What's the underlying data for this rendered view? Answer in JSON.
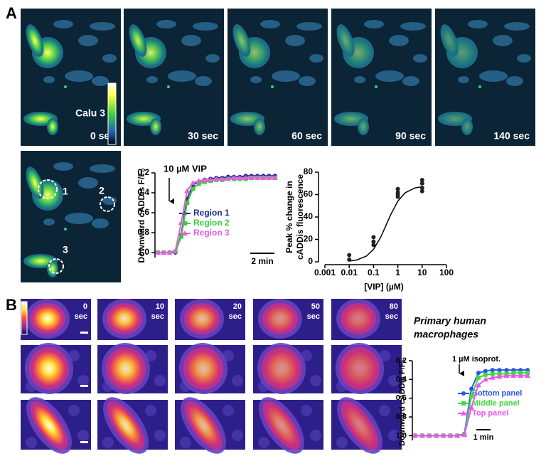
{
  "panel_labels": [
    "A",
    "B"
  ],
  "panel_a": {
    "cell_line": "Calu 3",
    "timepoints": [
      "0 sec",
      "30 sec",
      "60 sec",
      "90 sec",
      "140 sec"
    ],
    "regions": [
      "1",
      "2",
      "3"
    ]
  },
  "panel_b": {
    "title": [
      "Primary human",
      "macrophages"
    ],
    "timepoints": [
      {
        "time": "0",
        "unit": "sec"
      },
      {
        "time": "10",
        "unit": "sec"
      },
      {
        "time": "20",
        "unit": "sec"
      },
      {
        "time": "50",
        "unit": "sec"
      },
      {
        "time": "80",
        "unit": "sec"
      }
    ]
  },
  "chart_data": [
    {
      "type": "line",
      "y_label": "Downward cADDis F/Fₒ",
      "annotation": "10 µM VIP",
      "scale_bar": "2 min",
      "x": [
        0,
        0.5,
        1,
        1.5,
        2,
        2.5,
        3,
        3.5,
        4,
        4.5,
        5,
        5.5,
        6,
        6.5,
        7,
        7.5,
        8,
        8.5,
        9,
        9.5,
        10
      ],
      "xlim": [
        0,
        10.5
      ],
      "ylim": [
        0.2,
        1.05
      ],
      "y_inverted": true,
      "yticks": [
        0.2,
        0.4,
        0.6,
        0.8,
        {
          "value": 1,
          "label": "1.0"
        }
      ],
      "series": [
        {
          "name": "Region 1",
          "color": "#1f2a8c",
          "marker": "circle",
          "values": [
            1,
            1,
            1,
            1,
            0.82,
            0.46,
            0.32,
            0.29,
            0.27,
            0.26,
            0.25,
            0.25,
            0.24,
            0.24,
            0.24,
            0.23,
            0.23,
            0.23,
            0.23,
            0.23,
            0.23
          ]
        },
        {
          "name": "Region 2",
          "color": "#3ccc3c",
          "marker": "square",
          "values": [
            1,
            1,
            1,
            0.99,
            0.84,
            0.5,
            0.36,
            0.31,
            0.29,
            0.28,
            0.27,
            0.27,
            0.26,
            0.26,
            0.26,
            0.26,
            0.25,
            0.25,
            0.25,
            0.25,
            0.25
          ]
        },
        {
          "name": "Region 3",
          "color": "#e060e0",
          "marker": "triangle",
          "values": [
            1,
            1,
            1,
            0.98,
            0.7,
            0.38,
            0.3,
            0.28,
            0.27,
            0.27,
            0.26,
            0.26,
            0.26,
            0.25,
            0.25,
            0.25,
            0.25,
            0.25,
            0.25,
            0.25,
            0.25
          ]
        }
      ]
    },
    {
      "type": "scatter",
      "y_label": [
        "Peak % change in",
        "cADDis fluorescence"
      ],
      "x_label": "[VIP] (µM)",
      "log_x": true,
      "color": "#222222",
      "x": [
        0.01,
        0.01,
        0.1,
        0.1,
        0.1,
        1,
        1,
        1,
        1,
        10,
        10,
        10,
        10
      ],
      "values": [
        2,
        6,
        15,
        18,
        22,
        58,
        60,
        62,
        65,
        63,
        66,
        70,
        73
      ],
      "fit": {
        "x": [
          0.01,
          0.02,
          0.05,
          0.1,
          0.2,
          0.5,
          1,
          2,
          5,
          10
        ],
        "values": [
          0.66,
          1.6,
          5.0,
          11.1,
          22.2,
          41.7,
          54.2,
          61.6,
          65.9,
          67.1
        ]
      },
      "xlim": [
        0.001,
        100
      ],
      "xticks": [
        0.001,
        0.01,
        0.1,
        1,
        10,
        100
      ],
      "ylim": [
        0,
        80
      ],
      "yticks": [
        0,
        20,
        40,
        60,
        80
      ]
    },
    {
      "type": "line",
      "y_label": "Downward cADDis F/Fₒ",
      "annotation": "1 µM isoprot.",
      "scale_bar": "1 min",
      "x": [
        0,
        0.5,
        1,
        1.5,
        2,
        2.5,
        3,
        3.5,
        4,
        4.5,
        5,
        5.5,
        6,
        6.5,
        7,
        7.5,
        8
      ],
      "xlim": [
        0,
        8.5
      ],
      "ylim": [
        0.2,
        1.05
      ],
      "y_inverted": true,
      "yticks": [
        0.2,
        0.4,
        0.6,
        0.8,
        {
          "value": 1,
          "label": "1.0"
        }
      ],
      "series": [
        {
          "name": "Bottom panel",
          "color": "#2a55ee",
          "marker": "circle",
          "values": [
            1,
            1,
            1,
            1,
            1,
            1,
            1,
            0.98,
            0.5,
            0.33,
            0.31,
            0.3,
            0.3,
            0.3,
            0.3,
            0.3,
            0.3
          ]
        },
        {
          "name": "Middle panel",
          "color": "#3cdc3c",
          "marker": "square",
          "values": [
            1,
            1,
            1,
            1,
            1,
            1,
            1,
            0.99,
            0.58,
            0.38,
            0.35,
            0.34,
            0.34,
            0.34,
            0.33,
            0.33,
            0.33
          ]
        },
        {
          "name": "Top panel",
          "color": "#ee55ee",
          "marker": "triangle",
          "values": [
            1,
            1,
            1,
            1,
            1,
            1,
            1,
            0.99,
            0.7,
            0.46,
            0.4,
            0.38,
            0.37,
            0.36,
            0.36,
            0.36,
            0.36
          ]
        }
      ]
    }
  ]
}
